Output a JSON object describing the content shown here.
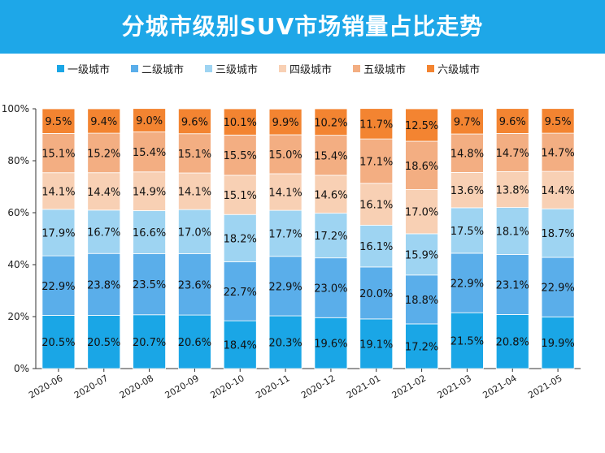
{
  "title": "分城市级别SUV市场销量占比走势",
  "colors": {
    "banner": "#1ea7e8",
    "series": [
      "#1aa6e6",
      "#5aaeea",
      "#9ed4f2",
      "#f8d0b4",
      "#f3ae82",
      "#f38431"
    ]
  },
  "chart_data": {
    "type": "bar",
    "stacked": true,
    "title": "分城市级别SUV市场销量占比走势",
    "categories": [
      "2020-06",
      "2020-07",
      "2020-08",
      "2020-09",
      "2020-10",
      "2020-11",
      "2020-12",
      "2021-01",
      "2021-02",
      "2021-03",
      "2021-04",
      "2021-05"
    ],
    "series": [
      {
        "name": "一级城市",
        "values": [
          20.5,
          20.5,
          20.7,
          20.6,
          18.4,
          20.3,
          19.6,
          19.1,
          17.2,
          21.5,
          20.8,
          19.9
        ]
      },
      {
        "name": "二级城市",
        "values": [
          22.9,
          23.8,
          23.5,
          23.6,
          22.7,
          22.9,
          23.0,
          20.0,
          18.8,
          22.9,
          23.1,
          22.9
        ]
      },
      {
        "name": "三级城市",
        "values": [
          17.9,
          16.7,
          16.6,
          17.0,
          18.2,
          17.7,
          17.2,
          16.1,
          15.9,
          17.5,
          18.1,
          18.7
        ]
      },
      {
        "name": "四级城市",
        "values": [
          14.1,
          14.4,
          14.9,
          14.1,
          15.1,
          14.1,
          14.6,
          16.1,
          17.0,
          13.6,
          13.8,
          14.4
        ]
      },
      {
        "name": "五级城市",
        "values": [
          15.1,
          15.2,
          15.4,
          15.1,
          15.5,
          15.0,
          15.4,
          17.1,
          18.6,
          14.8,
          14.7,
          14.7
        ]
      },
      {
        "name": "六级城市",
        "values": [
          9.5,
          9.4,
          9.0,
          9.6,
          10.1,
          9.9,
          10.2,
          11.7,
          12.5,
          9.7,
          9.6,
          9.5
        ]
      }
    ],
    "yticks": [
      "0%",
      "20%",
      "40%",
      "60%",
      "80%",
      "100%"
    ],
    "ylim": [
      0,
      100
    ],
    "grid": false,
    "legend": "top"
  }
}
